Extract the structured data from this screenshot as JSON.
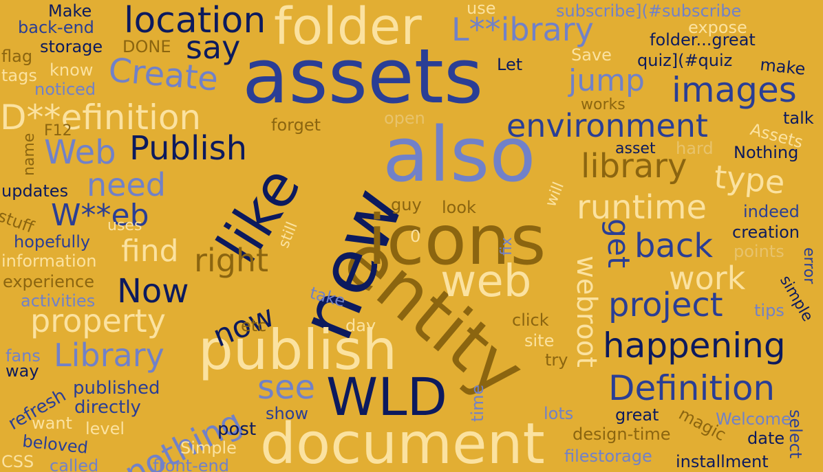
{
  "cloud": {
    "background": "#E2AE33",
    "palette": {
      "navy": "#0C1A5E",
      "blue": "#2A3E95",
      "periwinkle": "#7181C8",
      "cream": "#FBE2A0",
      "olive": "#8B6510"
    },
    "words": [
      "assets",
      "also",
      "entity",
      "new",
      "icons",
      "like",
      "document",
      "folder",
      "publish",
      "WLD",
      "web",
      "location",
      "D**efinition",
      "happening",
      "Definition",
      "images",
      "environment",
      "project",
      "library",
      "runtime",
      "Publish",
      "back",
      "Create",
      "Library",
      "property",
      "Now",
      "say",
      "work",
      "L**ibrary",
      "type",
      "need",
      "jump",
      "nothing",
      "see",
      "W**eb",
      "right",
      "now",
      "get",
      "webroot",
      "Web",
      "find",
      "hopefully",
      "updates",
      "information",
      "experience",
      "activities",
      "fans",
      "way",
      "refresh",
      "published",
      "directly",
      "want",
      "beloved",
      "CSS",
      "called",
      "front-end",
      "level",
      "Simple",
      "post",
      "show",
      "time",
      "lots",
      "great",
      "magic",
      "Welcome",
      "select",
      "date",
      "installment",
      "filestorage",
      "design-time",
      "error",
      "simple",
      "points",
      "tips",
      "creation",
      "indeed",
      "talk",
      "Nothing",
      "Assets",
      "hard",
      "asset",
      "will",
      "fix",
      "look",
      "guy",
      "open",
      "forget",
      "works",
      "make",
      "quiz](#quiz",
      "Save",
      "folder...great",
      "Let",
      "expose",
      "subscribe](#subscribe",
      "use",
      "Make",
      "back-end",
      "storage",
      "DONE",
      "flag",
      "tags",
      "know",
      "noticed",
      "F12",
      "name",
      "stuff",
      "uses",
      "still",
      "0",
      "take",
      "etc",
      "day",
      "click",
      "site",
      "try"
    ]
  }
}
